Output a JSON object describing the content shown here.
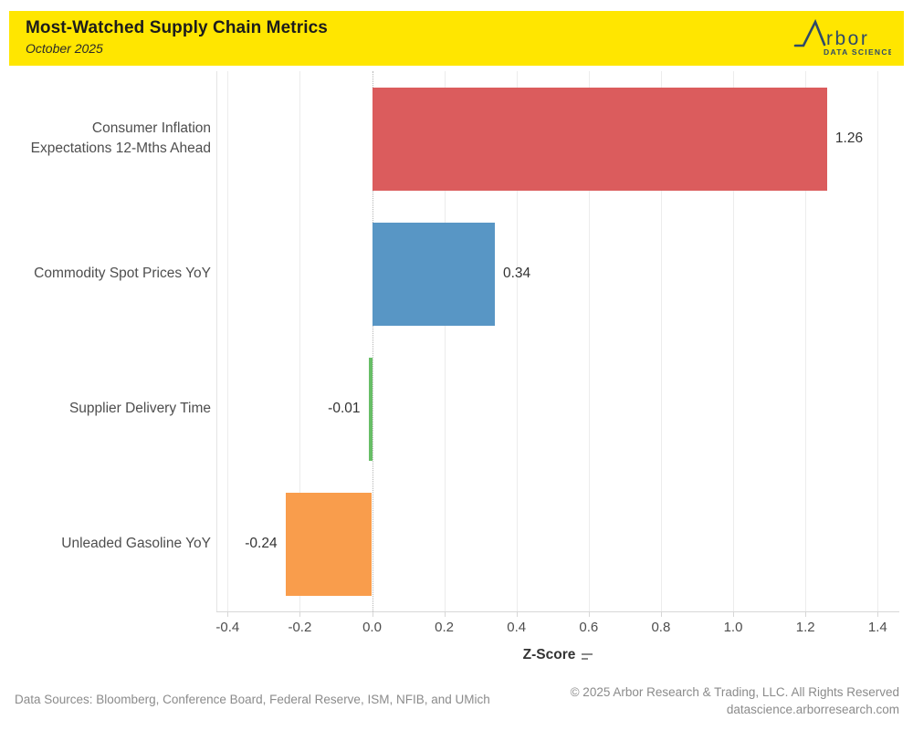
{
  "header": {
    "title": "Most-Watched Supply Chain Metrics",
    "subtitle": "October 2025",
    "band_color": "#FFE600",
    "logo": {
      "brand_text": "rbor",
      "tagline": "DATA SCIENCE",
      "color": "#2E4A69"
    }
  },
  "chart_data": {
    "type": "bar",
    "orientation": "horizontal",
    "title": "Most-Watched Supply Chain Metrics",
    "subtitle": "October 2025",
    "categories": [
      "Consumer Inflation Expectations 12-Mths Ahead",
      "Commodity Spot Prices YoY",
      "Supplier Delivery Time",
      "Unleaded Gasoline YoY"
    ],
    "values": [
      1.26,
      0.34,
      -0.01,
      -0.24
    ],
    "value_labels": [
      "1.26",
      "0.34",
      "-0.01",
      "-0.24"
    ],
    "bar_colors": [
      "#DB5C5D",
      "#5896C5",
      "#68BE67",
      "#F99D4C"
    ],
    "xlabel": "Z-Score",
    "ylabel": "",
    "x_ticks": [
      -0.4,
      -0.2,
      0.0,
      0.2,
      0.4,
      0.6,
      0.8,
      1.0,
      1.2,
      1.4
    ],
    "x_tick_labels": [
      "-0.4",
      "-0.2",
      "0.0",
      "0.2",
      "0.4",
      "0.6",
      "0.8",
      "1.0",
      "1.2",
      "1.4"
    ],
    "xlim": [
      -0.431,
      1.46
    ],
    "grid": true,
    "zero_line": "dotted",
    "legend": "none"
  },
  "footer": {
    "sources": "Data Sources: Bloomberg, Conference Board, Federal Reserve, ISM, NFIB, and UMich",
    "copyright": "© 2025 Arbor Research & Trading, LLC. All Rights Reserved",
    "website": "datascience.arborresearch.com"
  }
}
